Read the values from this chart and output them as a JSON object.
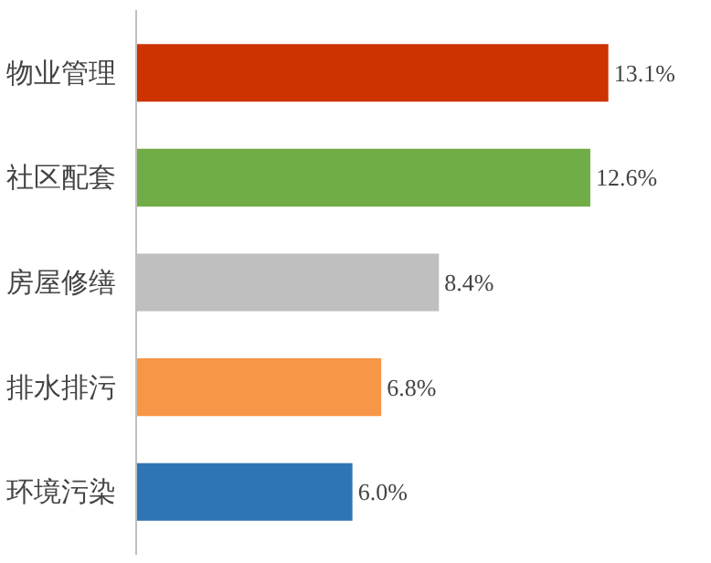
{
  "chart_data": {
    "type": "bar",
    "orientation": "horizontal",
    "categories": [
      "物业管理",
      "社区配套",
      "房屋修缮",
      "排水排污",
      "环境污染"
    ],
    "values": [
      13.1,
      12.6,
      8.4,
      6.8,
      6.0
    ],
    "colors": [
      "#cc3300",
      "#70ad47",
      "#bfbfbf",
      "#f79646",
      "#2e75b6"
    ],
    "value_labels": [
      "13.1%",
      "12.6%",
      "8.4%",
      "6.8%",
      "6.0%"
    ],
    "grid": false
  }
}
